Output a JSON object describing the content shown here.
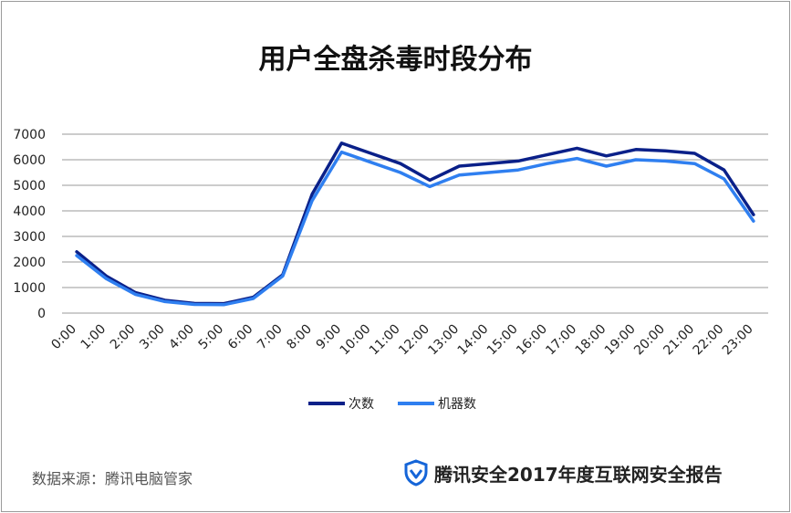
{
  "chart_data": {
    "type": "line",
    "title": "用户全盘杀毒时段分布",
    "categories": [
      "0:00",
      "1:00",
      "2:00",
      "3:00",
      "4:00",
      "5:00",
      "6:00",
      "7:00",
      "8:00",
      "9:00",
      "10:00",
      "11:00",
      "12:00",
      "13:00",
      "14:00",
      "15:00",
      "16:00",
      "17:00",
      "18:00",
      "19:00",
      "20:00",
      "21:00",
      "22:00",
      "23:00"
    ],
    "series": [
      {
        "name": "次数",
        "color": "#0a2089",
        "values": [
          2400,
          1450,
          800,
          500,
          380,
          370,
          620,
          1500,
          4650,
          6650,
          6250,
          5850,
          5200,
          5750,
          5850,
          5950,
          6200,
          6450,
          6150,
          6400,
          6350,
          6250,
          5600,
          3850
        ]
      },
      {
        "name": "机器数",
        "color": "#2f7ff0",
        "values": [
          2250,
          1350,
          730,
          450,
          340,
          330,
          570,
          1450,
          4400,
          6300,
          5900,
          5500,
          4950,
          5400,
          5500,
          5600,
          5850,
          6050,
          5750,
          6000,
          5950,
          5850,
          5250,
          3600
        ]
      }
    ],
    "ylim": [
      0,
      7000
    ],
    "yticks": [
      0,
      1000,
      2000,
      3000,
      4000,
      5000,
      6000,
      7000
    ],
    "grid": true,
    "legend": "bottom"
  },
  "footer": {
    "source": "数据来源：腾讯电脑管家",
    "brand": "腾讯安全2017年度互联网安全报告",
    "brand_icon": "shield-icon"
  }
}
